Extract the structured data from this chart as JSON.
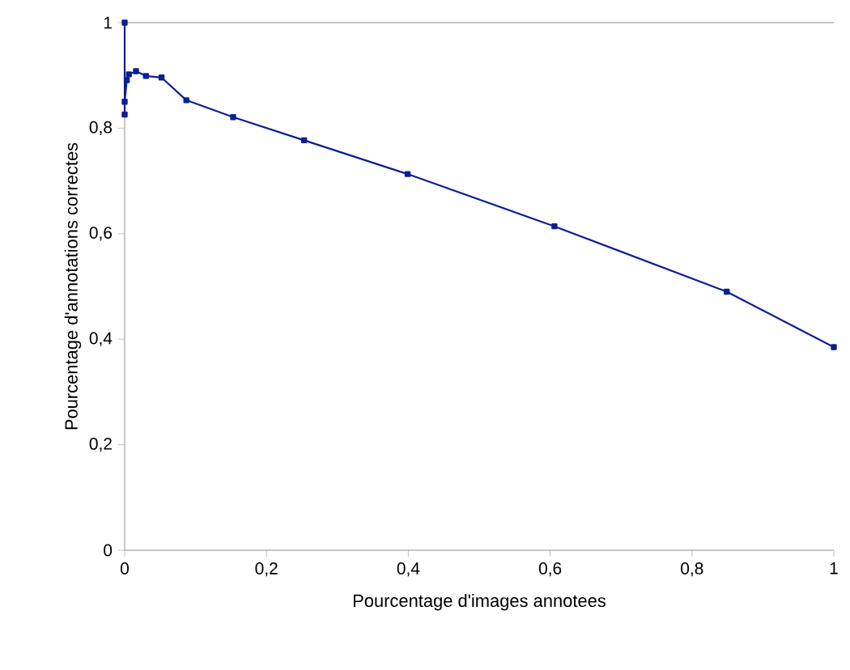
{
  "chart_data": {
    "type": "line",
    "xlabel": "Pourcentage d'images annotees",
    "ylabel": "Pourcentage d'annotations correctes",
    "xlim": [
      0,
      1
    ],
    "ylim": [
      0,
      1
    ],
    "xticks": [
      0,
      {
        "value": 0.2,
        "label": "0,2"
      },
      {
        "value": 0.4,
        "label": "0,4"
      },
      {
        "value": 0.6,
        "label": "0,6"
      },
      {
        "value": 0.8,
        "label": "0,8"
      },
      1
    ],
    "yticks": [
      0,
      {
        "value": 0.2,
        "label": "0,2"
      },
      {
        "value": 0.4,
        "label": "0,4"
      },
      {
        "value": 0.6,
        "label": "0,6"
      },
      {
        "value": 0.8,
        "label": "0,8"
      },
      1
    ],
    "marker": "square",
    "line_style": "solid",
    "grid": false,
    "legend": false,
    "series": [
      {
        "color": "#0b1f94",
        "x": [
          0,
          0,
          0,
          0.003,
          0.006,
          0.016,
          0.03,
          0.052,
          0.087,
          0.153,
          0.253,
          0.399,
          0.606,
          0.849,
          1
        ],
        "values": [
          1,
          0.826,
          0.85,
          0.891,
          0.902,
          0.908,
          0.899,
          0.896,
          0.853,
          0.821,
          0.777,
          0.713,
          0.614,
          0.49,
          0.385
        ]
      }
    ]
  }
}
